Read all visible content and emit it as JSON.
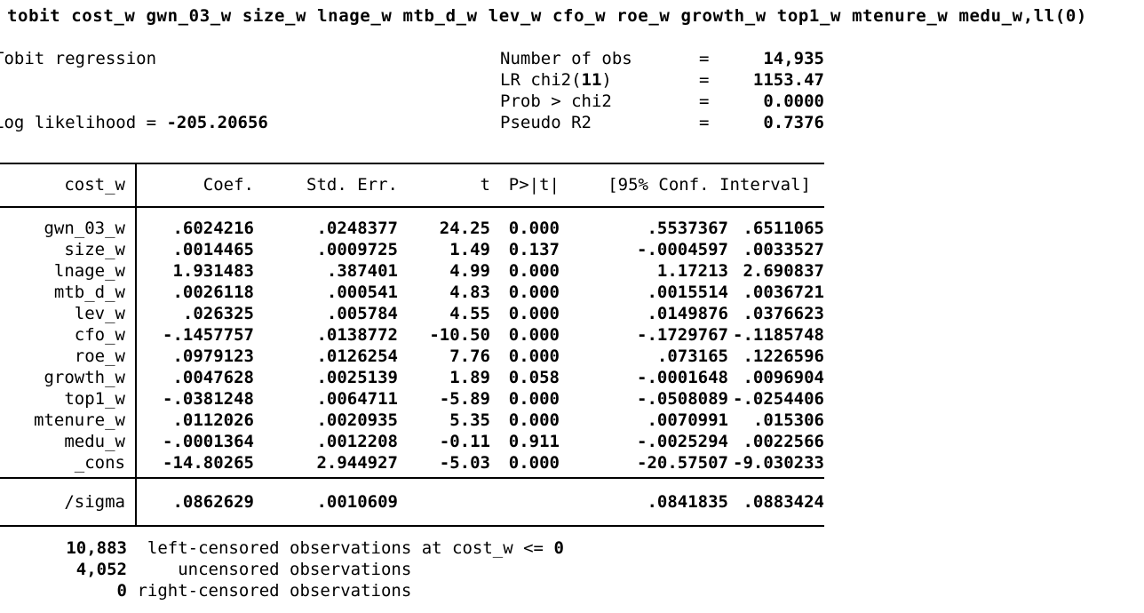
{
  "command": "tobit cost_w gwn_03_w size_w lnage_w mtb_d_w lev_w cfo_w roe_w growth_w top1_w mtenure_w medu_w,ll(0)",
  "header": {
    "model_title": "Tobit regression",
    "log_likelihood_label": "Log likelihood = ",
    "log_likelihood_value": "-205.20656",
    "eq": "=",
    "stats": [
      {
        "label": "Number of obs",
        "value": "14,935"
      },
      {
        "label_pre": "LR chi2(",
        "df": "11",
        "label_post": ")",
        "value": "1153.47"
      },
      {
        "label": "Prob > chi2",
        "value": "0.0000"
      },
      {
        "label": "Pseudo R2",
        "value": "0.7376"
      }
    ]
  },
  "table": {
    "dep_var": "cost_w",
    "columns": {
      "coef": "Coef.",
      "se": "Std. Err.",
      "t": "t",
      "p": "P>|t|",
      "ci": "[95% Conf. Interval]"
    },
    "rows": [
      {
        "var": "gwn_03_w",
        "coef": ".6024216",
        "se": ".0248377",
        "t": "24.25",
        "p": "0.000",
        "lo": ".5537367",
        "hi": ".6511065"
      },
      {
        "var": "size_w",
        "coef": ".0014465",
        "se": ".0009725",
        "t": "1.49",
        "p": "0.137",
        "lo": "-.0004597",
        "hi": ".0033527"
      },
      {
        "var": "lnage_w",
        "coef": "1.931483",
        "se": ".387401",
        "t": "4.99",
        "p": "0.000",
        "lo": "1.17213",
        "hi": "2.690837"
      },
      {
        "var": "mtb_d_w",
        "coef": ".0026118",
        "se": ".000541",
        "t": "4.83",
        "p": "0.000",
        "lo": ".0015514",
        "hi": ".0036721"
      },
      {
        "var": "lev_w",
        "coef": ".026325",
        "se": ".005784",
        "t": "4.55",
        "p": "0.000",
        "lo": ".0149876",
        "hi": ".0376623"
      },
      {
        "var": "cfo_w",
        "coef": "-.1457757",
        "se": ".0138772",
        "t": "-10.50",
        "p": "0.000",
        "lo": "-.1729767",
        "hi": "-.1185748"
      },
      {
        "var": "roe_w",
        "coef": ".0979123",
        "se": ".0126254",
        "t": "7.76",
        "p": "0.000",
        "lo": ".073165",
        "hi": ".1226596"
      },
      {
        "var": "growth_w",
        "coef": ".0047628",
        "se": ".0025139",
        "t": "1.89",
        "p": "0.058",
        "lo": "-.0001648",
        "hi": ".0096904"
      },
      {
        "var": "top1_w",
        "coef": "-.0381248",
        "se": ".0064711",
        "t": "-5.89",
        "p": "0.000",
        "lo": "-.0508089",
        "hi": "-.0254406"
      },
      {
        "var": "mtenure_w",
        "coef": ".0112026",
        "se": ".0020935",
        "t": "5.35",
        "p": "0.000",
        "lo": ".0070991",
        "hi": ".015306"
      },
      {
        "var": "medu_w",
        "coef": "-.0001364",
        "se": ".0012208",
        "t": "-0.11",
        "p": "0.911",
        "lo": "-.0025294",
        "hi": ".0022566"
      },
      {
        "var": "_cons",
        "coef": "-14.80265",
        "se": "2.944927",
        "t": "-5.03",
        "p": "0.000",
        "lo": "-20.57507",
        "hi": "-9.030233"
      }
    ],
    "sigma_row": {
      "var": "/sigma",
      "coef": ".0862629",
      "se": ".0010609",
      "t": "",
      "p": "",
      "lo": ".0841835",
      "hi": ".0883424"
    }
  },
  "notes": [
    {
      "count": "10,883",
      "text": "  left-censored observations at cost_w <= ",
      "bold_suffix": "0"
    },
    {
      "count": "4,052",
      "text": "     uncensored observations",
      "bold_suffix": ""
    },
    {
      "count": "0",
      "text": " right-censored observations",
      "bold_suffix": ""
    }
  ]
}
